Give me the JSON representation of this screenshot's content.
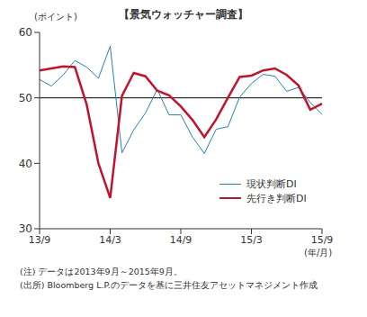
{
  "chart_data": {
    "type": "line",
    "title": "【景気ウォッチャー調査】",
    "y_label": "(ポイント)",
    "x_label": "(年/月)",
    "notes": [
      "(注) データは2013年9月～2015年9月。",
      "(出所) Bloomberg L.P.のデータを基に三井住友アセットマネジメント作成"
    ],
    "categories": [
      "13/9",
      null,
      null,
      null,
      null,
      null,
      "14/3",
      null,
      null,
      null,
      null,
      null,
      "14/9",
      null,
      null,
      null,
      null,
      null,
      "15/3",
      null,
      null,
      null,
      null,
      null,
      "15/9"
    ],
    "series": [
      {
        "name": "現状判断DI",
        "color": "#2a7db8",
        "line_style": "thin",
        "values": [
          52.8,
          51.8,
          53.5,
          55.7,
          54.7,
          53.0,
          57.9,
          41.6,
          45.1,
          47.7,
          51.3,
          47.4,
          47.4,
          44.0,
          41.5,
          45.2,
          45.6,
          50.1,
          52.2,
          53.6,
          53.3,
          51.0,
          51.6,
          49.3,
          47.5
        ]
      },
      {
        "name": "先行き判断DI",
        "color": "#c0142c",
        "line_style": "thick",
        "values": [
          54.2,
          54.5,
          54.8,
          54.7,
          49.0,
          40.0,
          34.7,
          50.3,
          53.8,
          53.3,
          51.1,
          50.4,
          48.7,
          46.6,
          44.0,
          46.7,
          50.0,
          53.2,
          53.4,
          54.2,
          54.5,
          53.5,
          51.9,
          48.2,
          49.1
        ]
      }
    ],
    "ylim": [
      30,
      60
    ],
    "yticks": [
      30,
      40,
      50,
      60
    ],
    "hlines": [
      50
    ],
    "grid": false,
    "legend": "lower right"
  }
}
